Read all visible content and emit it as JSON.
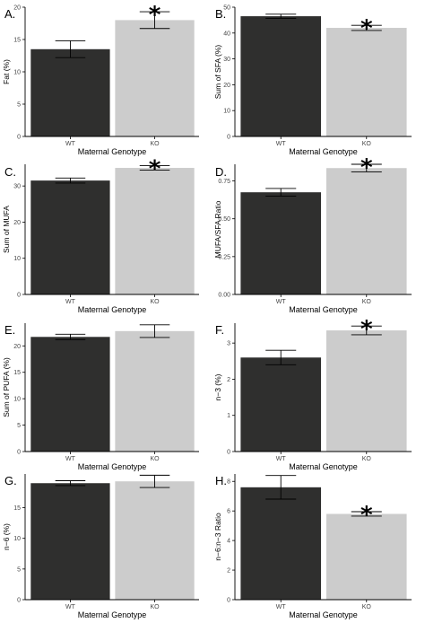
{
  "colors": {
    "wt": "#2f2f2e",
    "ko": "#cccccc",
    "axis": "#000000"
  },
  "chart_data": [
    {
      "panel": "A.",
      "type": "bar",
      "categories": [
        "WT",
        "KO"
      ],
      "ylabel": "Fat (%)",
      "xlabel": "Maternal Genotype",
      "values": [
        13.5,
        18.0
      ],
      "errors": [
        1.3,
        1.3
      ],
      "ylim": [
        0,
        20
      ],
      "yticks": [
        "0",
        "5",
        "10",
        "15",
        "20"
      ],
      "tick_values": [
        0,
        5,
        10,
        15,
        20
      ],
      "significance": [
        "",
        "*"
      ]
    },
    {
      "panel": "B.",
      "type": "bar",
      "categories": [
        "WT",
        "KO"
      ],
      "ylabel": "Sum of SFA (%)",
      "xlabel": "Maternal Genotype",
      "values": [
        46.5,
        42.0
      ],
      "errors": [
        0.8,
        1.0
      ],
      "ylim": [
        0,
        50
      ],
      "yticks": [
        "0",
        "10",
        "20",
        "30",
        "40",
        "50"
      ],
      "tick_values": [
        0,
        10,
        20,
        30,
        40,
        50
      ],
      "significance": [
        "",
        "*"
      ]
    },
    {
      "panel": "C.",
      "type": "bar",
      "categories": [
        "WT",
        "KO"
      ],
      "ylabel": "Sum of MUFA",
      "xlabel": "Maternal Genotype",
      "values": [
        31.5,
        35.0
      ],
      "errors": [
        0.7,
        0.6
      ],
      "ylim": [
        0,
        36
      ],
      "yticks": [
        "0",
        "10",
        "20",
        "30"
      ],
      "tick_values": [
        0,
        10,
        20,
        30
      ],
      "significance": [
        "",
        "*"
      ]
    },
    {
      "panel": "D.",
      "type": "bar",
      "categories": [
        "WT",
        "KO"
      ],
      "ylabel": "MUFA/SFA Ratio",
      "xlabel": "Maternal Genotype",
      "values": [
        0.675,
        0.835
      ],
      "errors": [
        0.025,
        0.025
      ],
      "ylim": [
        0,
        0.86
      ],
      "yticks": [
        "0.00",
        "0.25",
        "0.50",
        "0.75"
      ],
      "tick_values": [
        0,
        0.25,
        0.5,
        0.75
      ],
      "significance": [
        "",
        "*"
      ]
    },
    {
      "panel": "E.",
      "type": "bar",
      "categories": [
        "WT",
        "KO"
      ],
      "ylabel": "Sum of PUFA (%)",
      "xlabel": "Maternal Genotype",
      "values": [
        21.7,
        22.8
      ],
      "errors": [
        0.5,
        1.2
      ],
      "ylim": [
        0,
        24.3
      ],
      "yticks": [
        "0",
        "5",
        "10",
        "15",
        "20"
      ],
      "tick_values": [
        0,
        5,
        10,
        15,
        20
      ],
      "significance": [
        "",
        ""
      ]
    },
    {
      "panel": "F.",
      "type": "bar",
      "categories": [
        "WT",
        "KO"
      ],
      "ylabel": "n−3 (%)",
      "xlabel": "Maternal Genotype",
      "values": [
        2.6,
        3.35
      ],
      "errors": [
        0.2,
        0.12
      ],
      "ylim": [
        0,
        3.55
      ],
      "yticks": [
        "0",
        "1",
        "2",
        "3"
      ],
      "tick_values": [
        0,
        1,
        2,
        3
      ],
      "significance": [
        "",
        "*"
      ]
    },
    {
      "panel": "G.",
      "type": "bar",
      "categories": [
        "WT",
        "KO"
      ],
      "ylabel": "n−6 (%)",
      "xlabel": "Maternal Genotype",
      "values": [
        19.0,
        19.3
      ],
      "errors": [
        0.4,
        1.0
      ],
      "ylim": [
        0,
        20.5
      ],
      "yticks": [
        "0",
        "5",
        "10",
        "15"
      ],
      "tick_values": [
        0,
        5,
        10,
        15
      ],
      "significance": [
        "",
        ""
      ]
    },
    {
      "panel": "H.",
      "type": "bar",
      "categories": [
        "WT",
        "KO"
      ],
      "ylabel": "n−6:n−3 Ratio",
      "xlabel": "Maternal Genotype",
      "values": [
        7.6,
        5.8
      ],
      "errors": [
        0.8,
        0.15
      ],
      "ylim": [
        0,
        8.5
      ],
      "yticks": [
        "0",
        "2",
        "4",
        "6",
        "8"
      ],
      "tick_values": [
        0,
        2,
        4,
        6,
        8
      ],
      "significance": [
        "",
        "*"
      ]
    }
  ]
}
